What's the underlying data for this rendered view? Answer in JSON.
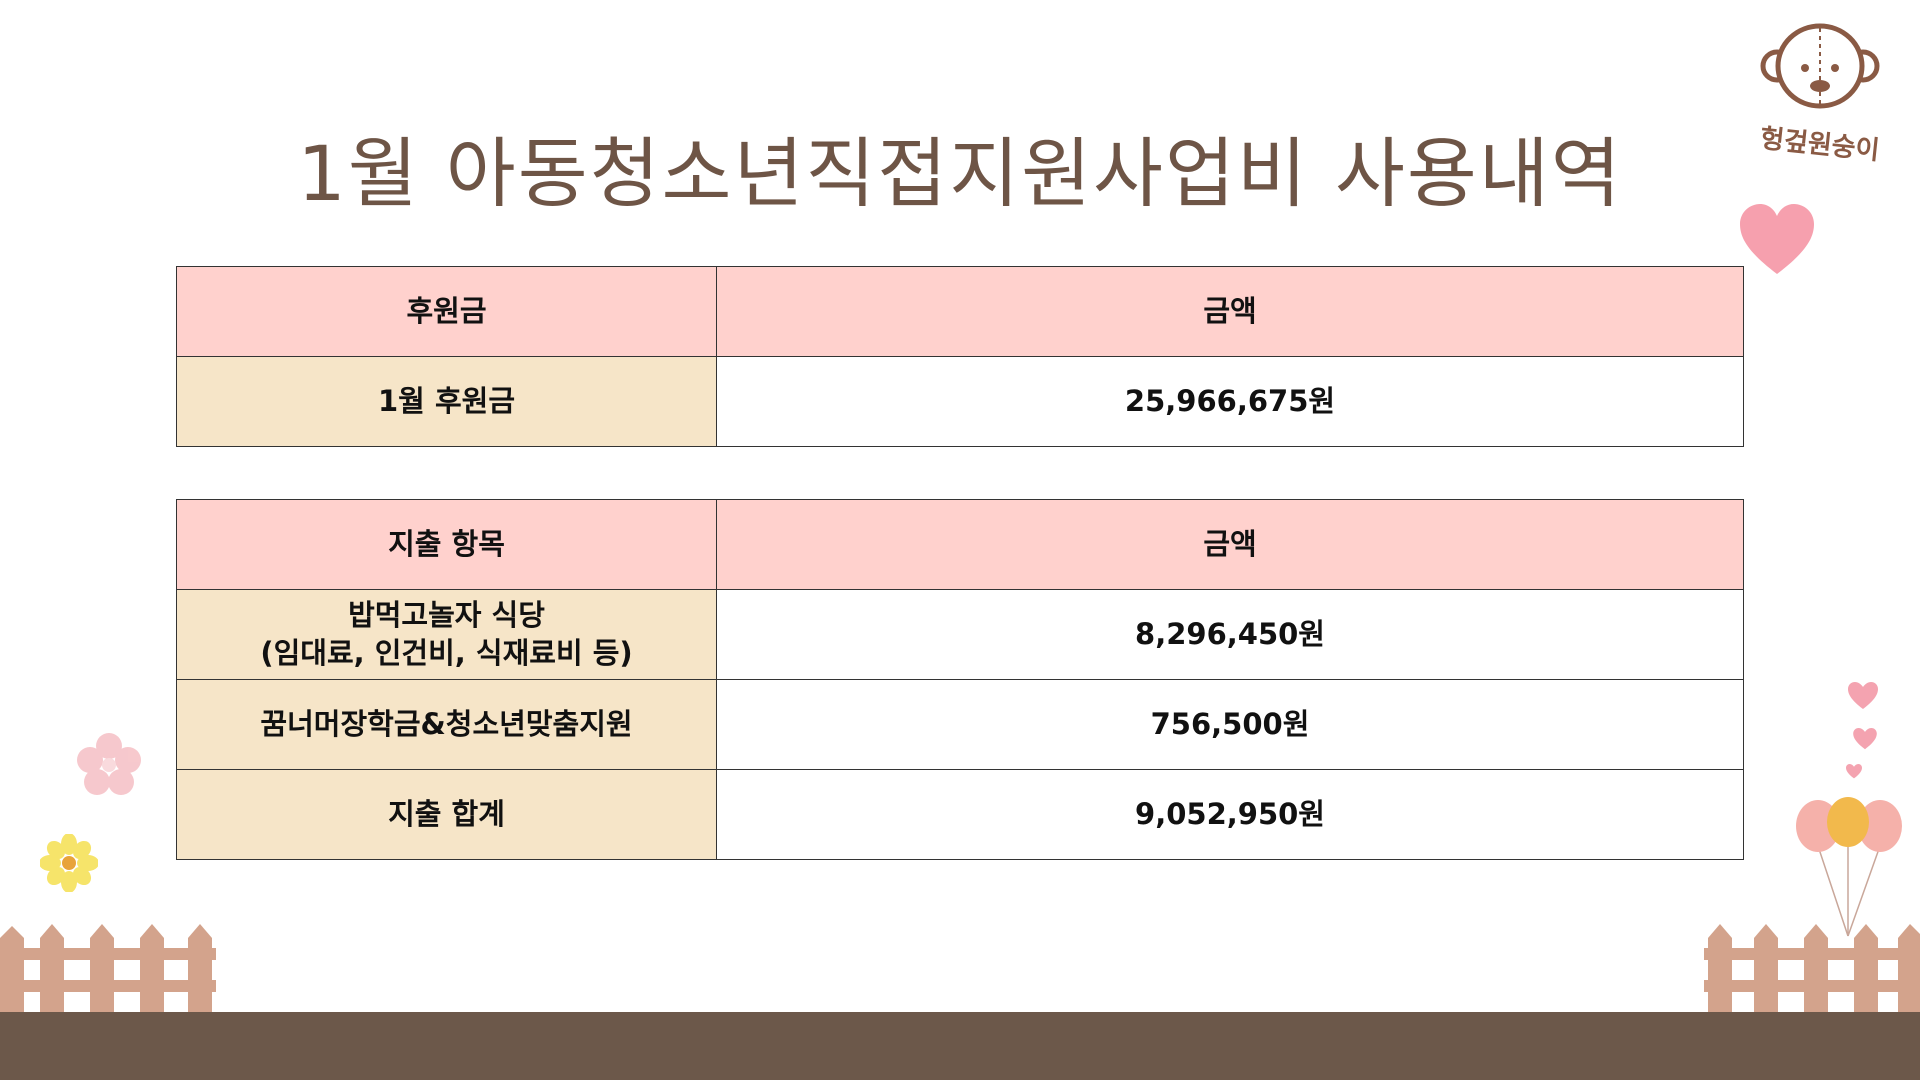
{
  "title": "1월 아동청소년직접지원사업비 사용내역",
  "logo": {
    "text": "헝겊원숭이",
    "icon": "monkey-face-icon"
  },
  "colors": {
    "title": "#6e5546",
    "header_bg": "#ffd1cd",
    "label_bg": "#f6e5c8",
    "ground": "#6c584a",
    "fence": "#d3a38c"
  },
  "income_table": {
    "headers": [
      "후원금",
      "금액"
    ],
    "rows": [
      {
        "label": "1월 후원금",
        "amount": "25,966,675원"
      }
    ]
  },
  "expense_table": {
    "headers": [
      "지출 항목",
      "금액"
    ],
    "rows": [
      {
        "label_line1": "밥먹고놀자 식당",
        "label_line2": "(임대료, 인건비, 식재료비 등)",
        "amount": "8,296,450원"
      },
      {
        "label": "꿈너머장학금&청소년맞춤지원",
        "amount": "756,500원"
      },
      {
        "label": "지출 합계",
        "amount": "9,052,950원"
      }
    ]
  }
}
